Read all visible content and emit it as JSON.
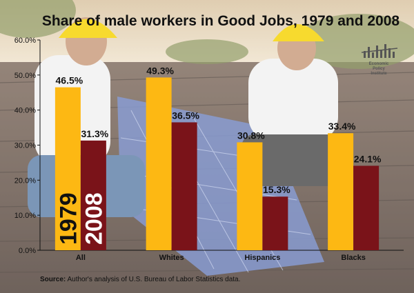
{
  "chart_data": {
    "type": "bar",
    "title": "Share of male workers in Good Jobs, 1979 and 2008",
    "categories": [
      "All",
      "Whites",
      "Hispanics",
      "Blacks"
    ],
    "series": [
      {
        "name": "1979",
        "values": [
          46.5,
          49.3,
          30.8,
          33.4
        ],
        "color": "#FDB813"
      },
      {
        "name": "2008",
        "values": [
          31.3,
          36.5,
          15.3,
          24.1
        ],
        "color": "#7A1319"
      }
    ],
    "data_labels": [
      [
        "46.5%",
        "49.3%",
        "30.8%",
        "33.4%"
      ],
      [
        "31.3%",
        "36.5%",
        "15.3%",
        "24.1%"
      ]
    ],
    "ylim": [
      0,
      60
    ],
    "yticks": [
      0,
      10,
      20,
      30,
      40,
      50,
      60
    ],
    "ytick_labels": [
      "0.0%",
      "10.0%",
      "20.0%",
      "30.0%",
      "40.0%",
      "50.0%",
      "60.0%"
    ],
    "xlabel": "",
    "ylabel": "",
    "grid": false,
    "legend": "series names printed vertically inside the first pair of bars"
  },
  "logo": {
    "lines": [
      "Economic",
      "Policy",
      "Institute"
    ],
    "color": "#555555"
  },
  "source": {
    "label": "Source:",
    "text": "Author's analysis of  U.S. Bureau of Labor Statistics data."
  },
  "colors": {
    "bar_1979": "#FDB813",
    "bar_2008": "#7A1319",
    "roof": "#6e5b4f",
    "sky": "#e8d5b5",
    "panel": "#6f86c8"
  }
}
